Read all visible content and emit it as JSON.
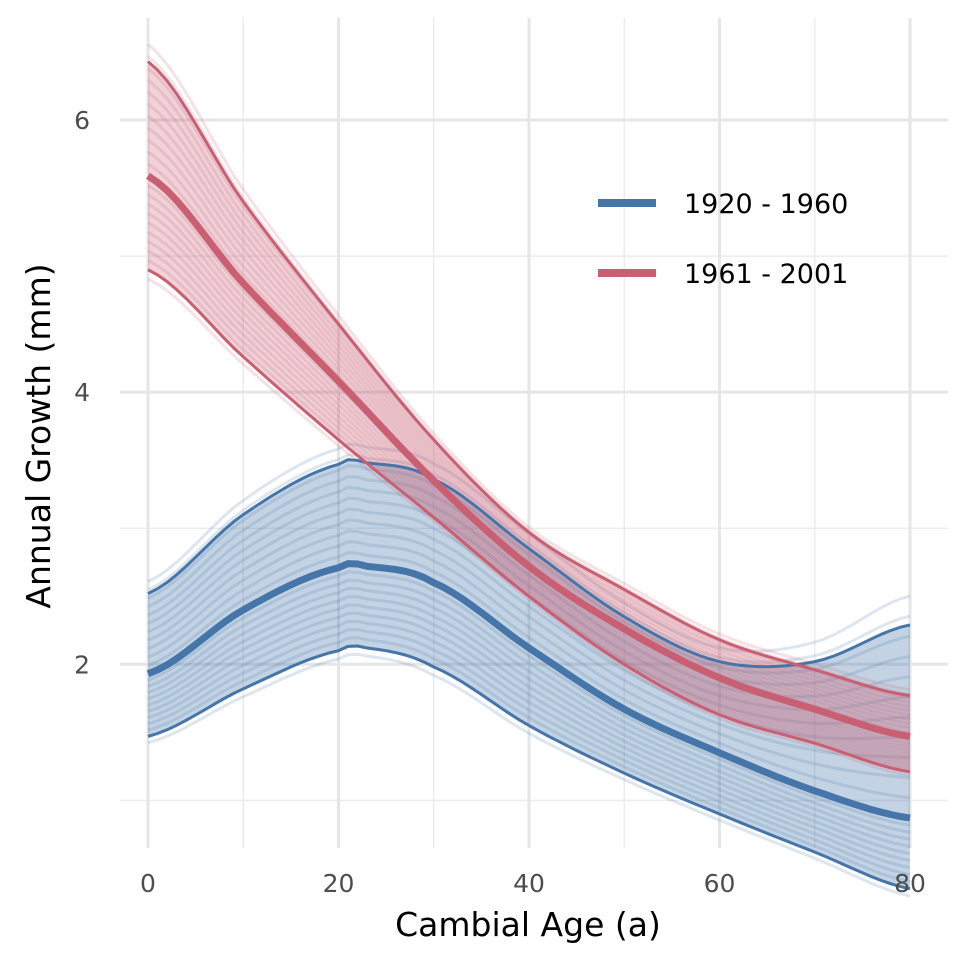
{
  "chart_data": {
    "type": "line",
    "xlabel": "Cambial Age (a)",
    "ylabel": "Annual Growth (mm)",
    "xlim": [
      0,
      80
    ],
    "ylim": [
      0.65,
      6.75
    ],
    "x_ticks": [
      0,
      20,
      40,
      60,
      80
    ],
    "y_ticks": [
      2,
      4,
      6
    ],
    "x_minor_gridlines": [
      10,
      30,
      50,
      70
    ],
    "y_minor_gridlines": [
      1,
      3,
      5
    ],
    "grid": true,
    "legend_position": "top-right",
    "series": [
      {
        "name": "1920 - 1960",
        "color": "#4575a9",
        "x": [
          0,
          10,
          20,
          23,
          30,
          40,
          50,
          60,
          70,
          80
        ],
        "mean": [
          1.93,
          2.4,
          2.71,
          2.72,
          2.6,
          2.12,
          1.67,
          1.35,
          1.07,
          0.87
        ],
        "upper": [
          2.52,
          3.1,
          3.47,
          3.48,
          3.36,
          2.85,
          2.35,
          2.02,
          2.02,
          2.29
        ],
        "lower": [
          1.47,
          1.82,
          2.1,
          2.12,
          1.98,
          1.55,
          1.2,
          0.9,
          0.62,
          0.35
        ]
      },
      {
        "name": "1961 - 2001",
        "color": "#c95f72",
        "x": [
          0,
          10,
          20,
          30,
          40,
          50,
          60,
          70,
          80
        ],
        "mean": [
          5.59,
          4.8,
          4.08,
          3.35,
          2.72,
          2.26,
          1.9,
          1.67,
          1.47
        ],
        "upper": [
          6.43,
          5.4,
          4.5,
          3.65,
          2.97,
          2.55,
          2.18,
          1.96,
          1.77
        ],
        "lower": [
          4.9,
          4.26,
          3.65,
          3.08,
          2.5,
          2.0,
          1.63,
          1.42,
          1.21
        ]
      }
    ]
  }
}
